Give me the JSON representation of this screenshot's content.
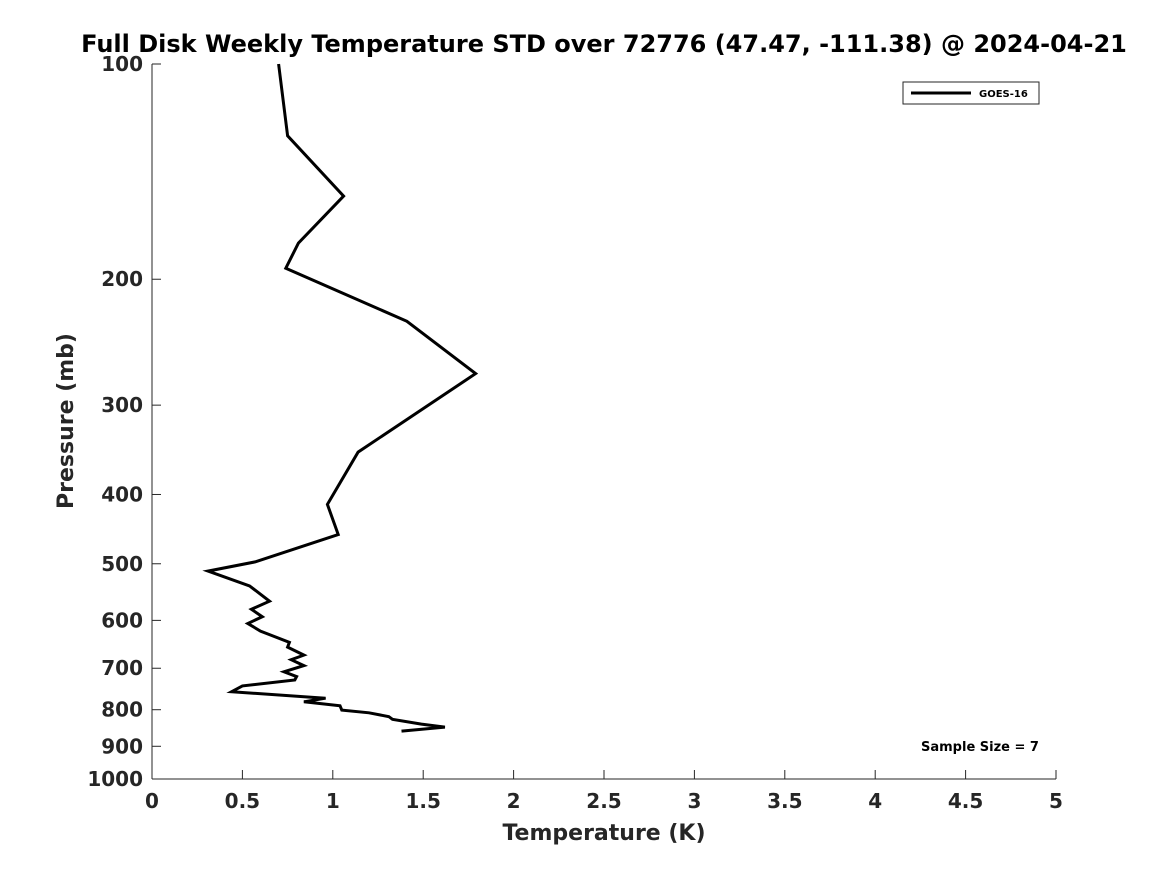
{
  "chart_data": {
    "type": "line",
    "title": "Full Disk Weekly Temperature STD over 72776 (47.47, -111.38) @ 2024-04-21",
    "xlabel": "Temperature (K)",
    "ylabel": "Pressure (mb)",
    "xlim": [
      0,
      5
    ],
    "ylim": [
      100,
      1000
    ],
    "y_scale": "log",
    "y_reversed": true,
    "x_ticks": [
      0,
      0.5,
      1,
      1.5,
      2,
      2.5,
      3,
      3.5,
      4,
      4.5,
      5
    ],
    "x_tick_labels": [
      "0",
      "0.5",
      "1",
      "1.5",
      "2",
      "2.5",
      "3",
      "3.5",
      "4",
      "4.5",
      "5"
    ],
    "y_ticks": [
      100,
      200,
      300,
      400,
      500,
      600,
      700,
      800,
      900,
      1000
    ],
    "y_tick_labels": [
      "100",
      "200",
      "300",
      "400",
      "500",
      "600",
      "700",
      "800",
      "900",
      "1000"
    ],
    "grid": false,
    "legend_position": "top-right",
    "series": [
      {
        "name": "GOES-16",
        "color": "#000000",
        "points": [
          [
            0.7,
            100
          ],
          [
            0.75,
            126
          ],
          [
            1.06,
            153
          ],
          [
            0.81,
            178
          ],
          [
            0.74,
            193
          ],
          [
            1.41,
            229
          ],
          [
            1.79,
            271
          ],
          [
            1.14,
            349
          ],
          [
            0.97,
            413
          ],
          [
            1.03,
            455
          ],
          [
            0.57,
            497
          ],
          [
            0.31,
            512
          ],
          [
            0.54,
            537
          ],
          [
            0.65,
            564
          ],
          [
            0.55,
            579
          ],
          [
            0.61,
            593
          ],
          [
            0.53,
            606
          ],
          [
            0.6,
            621
          ],
          [
            0.76,
            644
          ],
          [
            0.75,
            654
          ],
          [
            0.84,
            671
          ],
          [
            0.77,
            681
          ],
          [
            0.84,
            694
          ],
          [
            0.73,
            708
          ],
          [
            0.8,
            719
          ],
          [
            0.79,
            727
          ],
          [
            0.5,
            741
          ],
          [
            0.44,
            755
          ],
          [
            0.96,
            771
          ],
          [
            0.84,
            780
          ],
          [
            1.04,
            790
          ],
          [
            1.05,
            801
          ],
          [
            1.2,
            808
          ],
          [
            1.31,
            818
          ],
          [
            1.33,
            825
          ],
          [
            1.49,
            838
          ],
          [
            1.62,
            846
          ],
          [
            1.38,
            857
          ]
        ]
      }
    ],
    "annotation": "Sample Size = 7"
  }
}
